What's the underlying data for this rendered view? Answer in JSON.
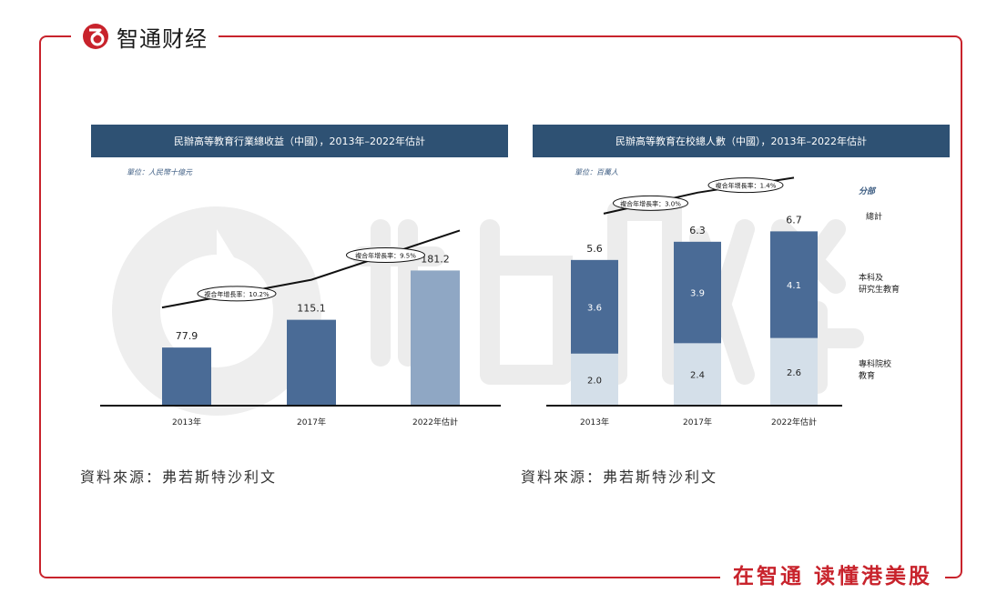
{
  "brand": {
    "name": "智通财经",
    "slogan": "在智通 读懂港美股"
  },
  "colors": {
    "frame": "#c8232c",
    "banner": "#2e5173",
    "bar_dark": "#4a6b96",
    "bar_light": "#8fa7c4",
    "bar_pale": "#d4dfe9"
  },
  "chart_data": [
    {
      "type": "bar",
      "title": "民辦高等教育行業總收益（中國），2013年–2022年估計",
      "unit": "單位：人民幣十億元",
      "source": "資料來源：弗若斯特沙利文",
      "categories": [
        "2013年",
        "2017年",
        "2022年估計"
      ],
      "values": [
        77.9,
        115.1,
        181.2
      ],
      "value_labels": [
        "77.9",
        "115.1",
        "181.2"
      ],
      "ylim": [
        0,
        200
      ],
      "annotations": [
        "複合年增長率：10.2%",
        "複合年增長率：9.5%"
      ]
    },
    {
      "type": "bar",
      "stacked": true,
      "title": "民辦高等教育在校總人數（中國），2013年–2022年估計",
      "unit": "單位：百萬人",
      "source": "資料來源：弗若斯特沙利文",
      "categories": [
        "2013年",
        "2017年",
        "2022年估計"
      ],
      "series": [
        {
          "name": "專科院校教育",
          "legend": [
            "專科院校",
            "教育"
          ],
          "values": [
            2.0,
            2.4,
            2.6
          ],
          "labels": [
            "2.0",
            "2.4",
            "2.6"
          ]
        },
        {
          "name": "本科及研究生教育",
          "legend": [
            "本科及",
            "研究生教育"
          ],
          "values": [
            3.6,
            3.9,
            4.1
          ],
          "labels": [
            "3.6",
            "3.9",
            "4.1"
          ]
        }
      ],
      "totals": [
        5.6,
        6.3,
        6.7
      ],
      "total_labels": [
        "5.6",
        "6.3",
        "6.7"
      ],
      "ylim": [
        0,
        8
      ],
      "legend_title": "分部",
      "total_legend": "總計",
      "annotations": [
        "複合年增長率：3.0%",
        "複合年增長率：1.4%"
      ]
    }
  ]
}
